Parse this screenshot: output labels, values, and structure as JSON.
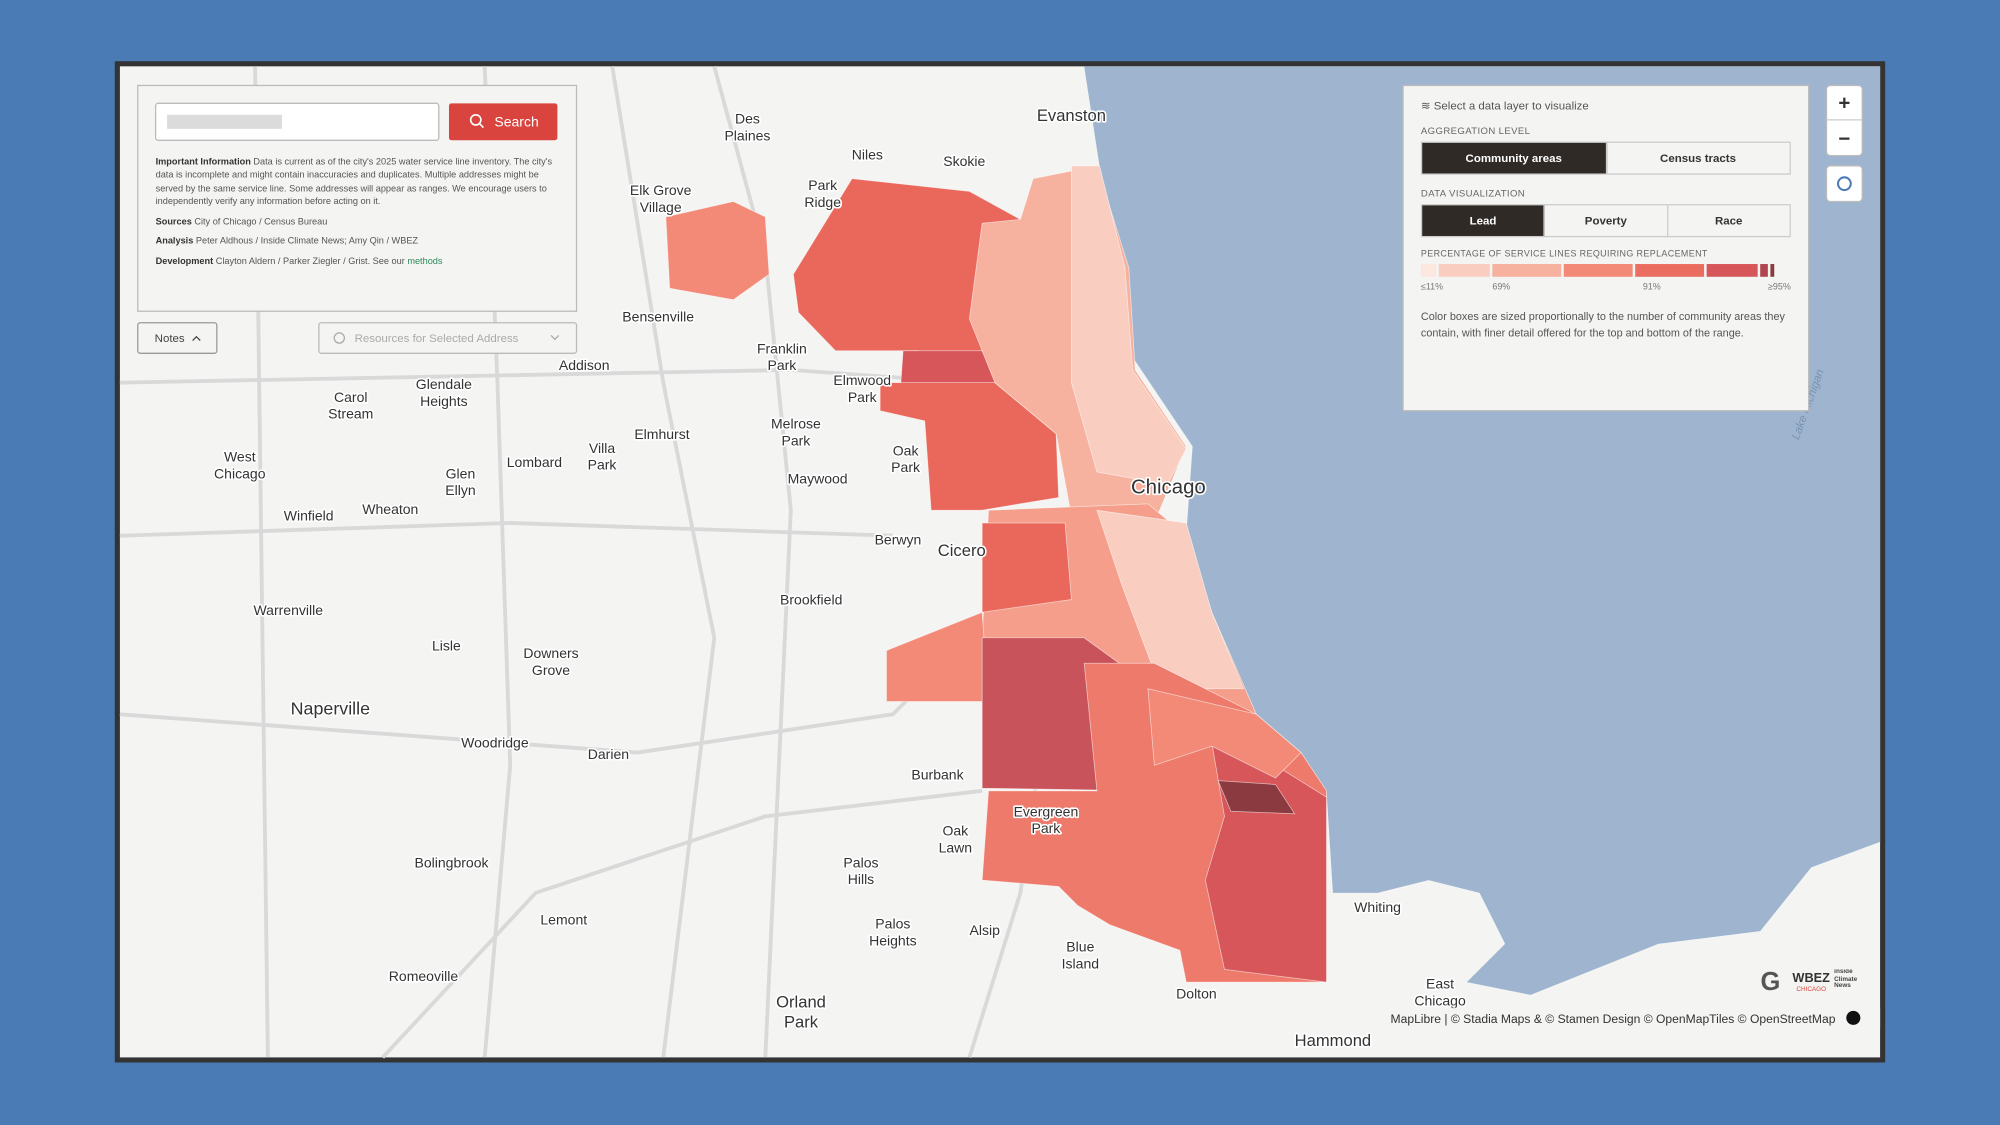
{
  "search": {
    "button": "Search"
  },
  "info": {
    "important_label": "Important Information",
    "important_text": "Data is current as of the city's 2025 water service line inventory. The city's data is incomplete and might contain inaccuracies and duplicates. Multiple addresses might be served by the same service line. Some addresses will appear as ranges. We encourage users to independently verify any information before acting on it.",
    "sources_label": "Sources",
    "sources_text": "City of Chicago / Census Bureau",
    "analysis_label": "Analysis",
    "analysis_text": "Peter Aldhous / Inside Climate News; Amy Qin / WBEZ",
    "development_label": "Development",
    "development_text": "Clayton Aldern / Parker Ziegler / Grist. See our",
    "methods_link": "methods"
  },
  "buttons": {
    "notes": "Notes",
    "resources": "Resources for Selected Address"
  },
  "layer_panel": {
    "heading": "Select a data layer to visualize",
    "aggregation_label": "AGGREGATION LEVEL",
    "aggregation_options": [
      "Community areas",
      "Census tracts"
    ],
    "visualization_label": "DATA VISUALIZATION",
    "visualization_options": [
      "Lead",
      "Poverty",
      "Race"
    ],
    "legend_title": "PERCENTAGE OF SERVICE LINES REQUIRING REPLACEMENT",
    "legend_labels": [
      "≤11%",
      "69%",
      "91%",
      "≥95%"
    ],
    "note": "Color boxes are sized proportionally to the number of community areas they contain, with finer detail offered for the top and bottom of the range."
  },
  "zoom": {
    "in": "+",
    "out": "−"
  },
  "places": [
    [
      "Evanston"
    ],
    [
      "Skokie"
    ],
    [
      "Des",
      "Plaines"
    ],
    [
      "Niles"
    ],
    [
      "Park",
      "Ridge"
    ],
    [
      "Elk Grove",
      "Village"
    ],
    [
      "Bensenville"
    ],
    [
      "Franklin",
      "Park"
    ],
    [
      "Elmwood",
      "Park"
    ],
    [
      "Addison"
    ],
    [
      "Carol",
      "Stream"
    ],
    [
      "Glendale",
      "Heights"
    ],
    [
      "Elmhurst"
    ],
    [
      "Melrose",
      "Park"
    ],
    [
      "Villa",
      "Park"
    ],
    [
      "Lombard"
    ],
    [
      "Oak",
      "Park"
    ],
    [
      "Maywood"
    ],
    [
      "West",
      "Chicago"
    ],
    [
      "Glen",
      "Ellyn"
    ],
    [
      "Winfield"
    ],
    [
      "Wheaton"
    ],
    [
      "Chicago"
    ],
    [
      "Berwyn"
    ],
    [
      "Cicero"
    ],
    [
      "Brookfield"
    ],
    [
      "Warrenville"
    ],
    [
      "Lisle"
    ],
    [
      "Downers",
      "Grove"
    ],
    [
      "Naperville"
    ],
    [
      "Woodridge"
    ],
    [
      "Darien"
    ],
    [
      "Burbank"
    ],
    [
      "Evergreen",
      "Park"
    ],
    [
      "Oak",
      "Lawn"
    ],
    [
      "Bolingbrook"
    ],
    [
      "Palos",
      "Hills"
    ],
    [
      "Lemont"
    ],
    [
      "Palos",
      "Heights"
    ],
    [
      "Alsip"
    ],
    [
      "Blue",
      "Island"
    ],
    [
      "Whiting"
    ],
    [
      "Romeoville"
    ],
    [
      "Orland",
      "Park"
    ],
    [
      "Dolton"
    ],
    [
      "East",
      "Chicago"
    ],
    [
      "Hammond"
    ]
  ],
  "lake_label": "Lake Michigan",
  "attribution": "MapLibre | © Stadia Maps & © Stamen Design © OpenMapTiles © OpenStreetMap",
  "logos": {
    "wbez": "WBEZ",
    "wbez_sub": "CHICAGO",
    "icn": "Inside Climate News"
  }
}
